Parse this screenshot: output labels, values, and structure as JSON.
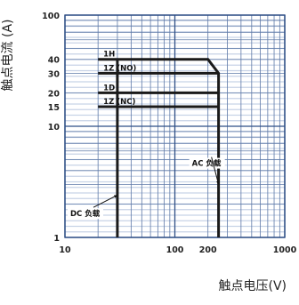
{
  "chart_data": {
    "type": "line",
    "title": "",
    "xlabel": "触点电压(V)",
    "ylabel": "触点电流 (A)",
    "x_scale": "log",
    "y_scale": "log",
    "xlim": [
      10,
      1000
    ],
    "ylim": [
      1,
      100
    ],
    "x_ticks": [
      10,
      100,
      200,
      1000
    ],
    "y_ticks": [
      1,
      10,
      15,
      20,
      30,
      40,
      100
    ],
    "grid": true,
    "series": [
      {
        "name": "1H",
        "points": [
          [
            20,
            40
          ],
          [
            200,
            40
          ],
          [
            250,
            30
          ],
          [
            250,
            1
          ]
        ]
      },
      {
        "name": "1Z (NO)",
        "points": [
          [
            20,
            30
          ],
          [
            250,
            30
          ]
        ]
      },
      {
        "name": "1D",
        "points": [
          [
            20,
            20
          ],
          [
            250,
            20
          ]
        ]
      },
      {
        "name": "1Z (NC)",
        "points": [
          [
            20,
            15
          ],
          [
            250,
            15
          ]
        ]
      },
      {
        "name": "DC 负载",
        "points": [
          [
            30,
            40
          ],
          [
            30,
            1
          ]
        ]
      }
    ],
    "annotations": [
      {
        "text": "AC 负载",
        "x": 250,
        "y": 4.4,
        "arrow_to": [
          250,
          3
        ]
      },
      {
        "text": "DC 负载",
        "x": 10,
        "y": 1.55,
        "arrow_to": [
          30,
          2.4
        ]
      }
    ],
    "colors": {
      "grid_band": "#c7d3e6",
      "grid_line": "#5f7aa8",
      "major_line": "#2f4f86",
      "curve": "#1a1a1a"
    }
  }
}
